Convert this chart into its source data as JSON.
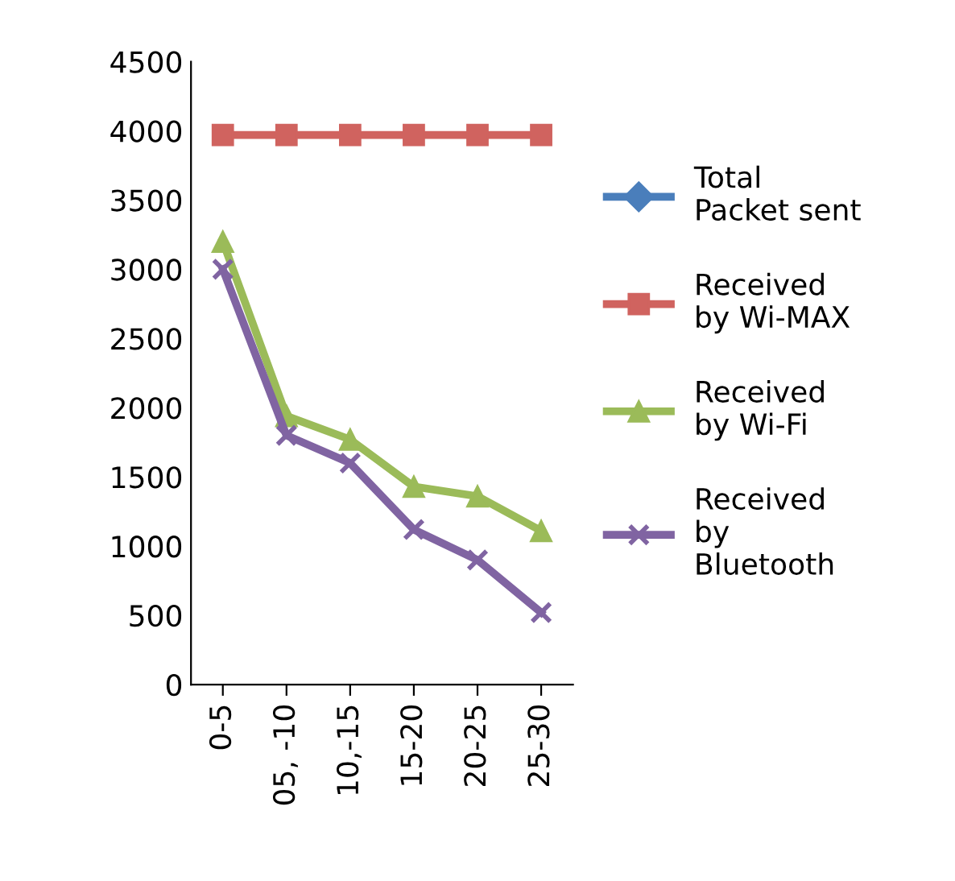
{
  "chart_data": {
    "type": "line",
    "categories": [
      "0-5",
      "05, -10",
      "10,-15",
      "15-20",
      "20-25",
      "25-30"
    ],
    "series": [
      {
        "name": "Total\nPacket sent",
        "color": "#4a7ebb",
        "marker": "diamond",
        "values": [
          null,
          null,
          null,
          null,
          null,
          null
        ]
      },
      {
        "name": "Received\nby Wi-MAX",
        "color": "#d0635f",
        "marker": "square",
        "values": [
          3970,
          3970,
          3970,
          3970,
          3970,
          3970
        ]
      },
      {
        "name": "Received\nby Wi-Fi",
        "color": "#9bbb59",
        "marker": "triangle",
        "values": [
          3200,
          1940,
          1770,
          1430,
          1360,
          1110
        ]
      },
      {
        "name": "Received\nby\nBluetooth",
        "color": "#8064a2",
        "marker": "cross",
        "values": [
          3000,
          1800,
          1600,
          1120,
          900,
          520
        ]
      }
    ],
    "ylim": [
      0,
      4500
    ],
    "yticks": [
      0,
      500,
      1000,
      1500,
      2000,
      2500,
      3000,
      3500,
      4000,
      4500
    ],
    "grid": false,
    "legend": "right"
  }
}
